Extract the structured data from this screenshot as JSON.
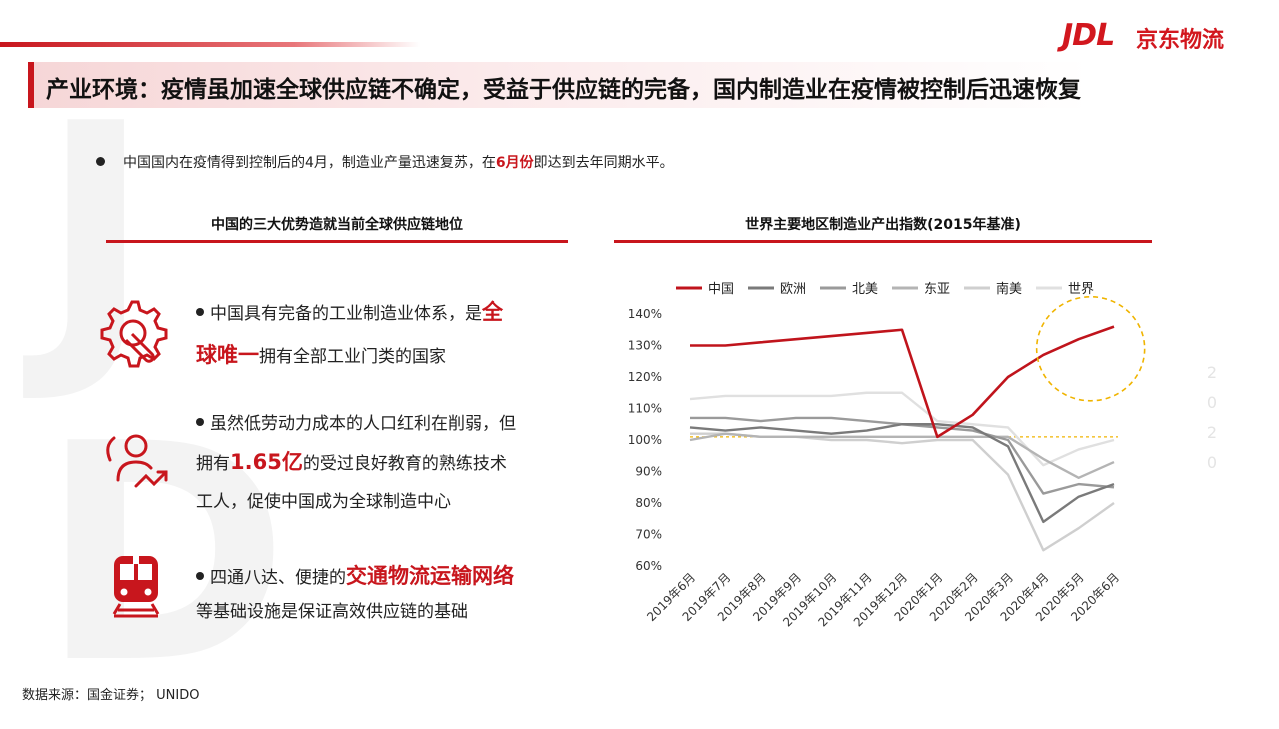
{
  "header": {
    "title": "产业环境：疫情虽加速全球供应链不确定，受益于供应链的完备，国内制造业在疫情被控制后迅速恢复",
    "logo_jdl": "JDL",
    "logo_cn": "京东物流"
  },
  "summary": {
    "prefix": "中国国内在疫情得到控制后的4月，制造业产量迅速复苏，在",
    "highlight": "6月份",
    "suffix": "即达到去年同期水平。"
  },
  "left_panel": {
    "title": "中国的三大优势造就当前全球供应链地位",
    "items": [
      {
        "icon": "gear-wrench-icon",
        "line1_a": "中国具有完备的工业制造业体系，是",
        "line1_b": "全",
        "line2_a": "球唯一",
        "line2_b": "拥有全部工业门类的国家"
      },
      {
        "icon": "people-growth-icon",
        "line1": "虽然低劳动力成本的人口红利在削弱，但",
        "line2_a": "拥有",
        "line2_b": "1.65亿",
        "line2_c": "的受过良好教育的熟练技术",
        "line3": "工人，促使中国成为全球制造中心"
      },
      {
        "icon": "train-icon",
        "line1_a": "四通八达、便捷的",
        "line1_b": "交通物流运输网络",
        "line2": "等基础设施是保证高效供应链的基础"
      }
    ]
  },
  "source": "数据来源：国金证券； UNIDO",
  "watermark": {
    "letters": [
      "J",
      "D"
    ],
    "vertical": [
      "2",
      "0",
      "2",
      "0"
    ]
  },
  "colors": {
    "accent": "#c8161d",
    "highlight_circle": "#f0b400"
  },
  "chart_data": {
    "type": "line",
    "title": "世界主要地区制造业产出指数(2015年基准)",
    "categories": [
      "2019年6月",
      "2019年7月",
      "2019年8月",
      "2019年9月",
      "2019年10月",
      "2019年11月",
      "2019年12月",
      "2020年1月",
      "2020年2月",
      "2020年3月",
      "2020年4月",
      "2020年5月",
      "2020年6月"
    ],
    "ylim": [
      60,
      140
    ],
    "yticks": [
      "60%",
      "70%",
      "80%",
      "90%",
      "100%",
      "110%",
      "120%",
      "130%",
      "140%"
    ],
    "reference_line": 101,
    "legend_position": "top",
    "series": [
      {
        "name": "中国",
        "color": "#c0141c",
        "values": [
          130,
          130,
          131,
          132,
          133,
          134,
          135,
          101,
          108,
          120,
          127,
          132,
          136
        ]
      },
      {
        "name": "欧洲",
        "color": "#7a7a7a",
        "values": [
          104,
          103,
          104,
          103,
          102,
          103,
          105,
          105,
          104,
          98,
          74,
          82,
          86
        ]
      },
      {
        "name": "北美",
        "color": "#9a9a9a",
        "values": [
          107,
          107,
          106,
          107,
          107,
          106,
          105,
          104,
          103,
          100,
          83,
          86,
          85
        ]
      },
      {
        "name": "东亚",
        "color": "#b4b4b4",
        "values": [
          100,
          102,
          101,
          101,
          101,
          101,
          101,
          101,
          101,
          101,
          94,
          88,
          93
        ]
      },
      {
        "name": "南美",
        "color": "#cfcfcf",
        "values": [
          102,
          102,
          101,
          101,
          100,
          100,
          99,
          100,
          100,
          89,
          65,
          72,
          80
        ]
      },
      {
        "name": "世界",
        "color": "#e0e0e0",
        "values": [
          113,
          114,
          114,
          114,
          114,
          115,
          115,
          106,
          105,
          104,
          92,
          97,
          100
        ]
      }
    ]
  }
}
